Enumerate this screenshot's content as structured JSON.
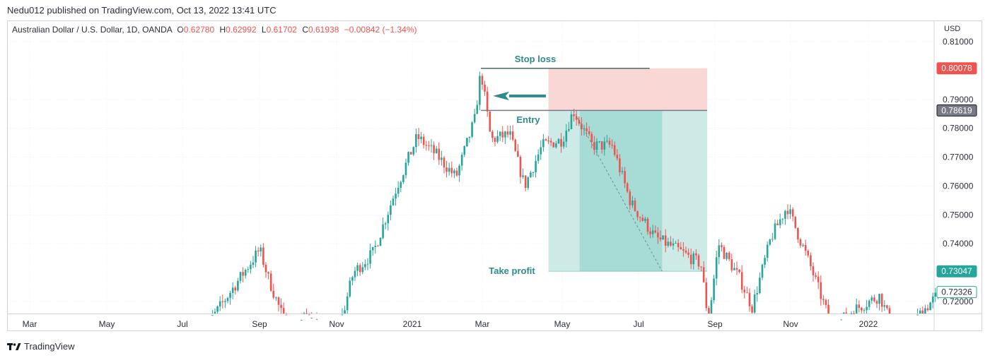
{
  "header": {
    "published": "Nedu012 published on TradingView.com, Oct 13, 2022 13:41 UTC"
  },
  "legend": {
    "symbol": "Australian Dollar / U.S. Dollar, 1D, OANDA",
    "o_label": "O",
    "o_value": "0.62780",
    "h_label": "H",
    "h_value": "0.62992",
    "l_label": "L",
    "l_value": "0.61702",
    "c_label": "C",
    "c_value": "0.61938",
    "change": "−0.00842 (−1.34%)"
  },
  "currency": "USD",
  "footer": {
    "brand": "TradingView"
  },
  "colors": {
    "up": "#26a69a",
    "down": "#ef5350",
    "stop_zone": "#f8d7d5",
    "profit_zone": "#cdeae7",
    "profit_zone_dark": "#a7dbd5",
    "label_teal": "#2e8b8b",
    "entry_badge": "#787b86",
    "stop_badge": "#ef5350",
    "tp_badge": "#26a69a",
    "last_badge_border": "#26a69a"
  },
  "chart_data": {
    "type": "candlestick",
    "symbol": "AUD/USD",
    "x_ticks": [
      "Mar",
      "May",
      "Jul",
      "Sep",
      "Nov",
      "2021",
      "Mar",
      "May",
      "Jul",
      "Sep",
      "Nov",
      "2022"
    ],
    "y_ticks": [
      "0.81000",
      "0.79000",
      "0.78000",
      "0.77000",
      "0.76000",
      "0.75000",
      "0.74000",
      "0.72000"
    ],
    "ylim": [
      0.7155,
      0.8155
    ],
    "time_range": [
      "2020-02",
      "2022-03"
    ],
    "price_path": [
      {
        "t": "2020-07-15",
        "p": 0.708
      },
      {
        "t": "2020-09-01",
        "p": 0.738
      },
      {
        "t": "2020-09-08",
        "p": 0.728
      },
      {
        "t": "2020-09-25",
        "p": 0.708
      },
      {
        "t": "2020-10-10",
        "p": 0.716
      },
      {
        "t": "2020-10-30",
        "p": 0.703
      },
      {
        "t": "2020-11-15",
        "p": 0.73
      },
      {
        "t": "2020-12-01",
        "p": 0.737
      },
      {
        "t": "2020-12-20",
        "p": 0.76
      },
      {
        "t": "2021-01-05",
        "p": 0.777
      },
      {
        "t": "2021-01-20",
        "p": 0.771
      },
      {
        "t": "2021-02-05",
        "p": 0.763
      },
      {
        "t": "2021-02-20",
        "p": 0.783
      },
      {
        "t": "2021-02-25",
        "p": 0.8
      },
      {
        "t": "2021-03-05",
        "p": 0.776
      },
      {
        "t": "2021-03-20",
        "p": 0.778
      },
      {
        "t": "2021-04-01",
        "p": 0.76
      },
      {
        "t": "2021-04-15",
        "p": 0.774
      },
      {
        "t": "2021-05-01",
        "p": 0.776
      },
      {
        "t": "2021-05-10",
        "p": 0.786
      },
      {
        "t": "2021-05-25",
        "p": 0.774
      },
      {
        "t": "2021-06-10",
        "p": 0.774
      },
      {
        "t": "2021-06-25",
        "p": 0.754
      },
      {
        "t": "2021-07-15",
        "p": 0.742
      },
      {
        "t": "2021-08-01",
        "p": 0.738
      },
      {
        "t": "2021-08-20",
        "p": 0.733
      },
      {
        "t": "2021-08-26",
        "p": 0.713
      },
      {
        "t": "2021-09-03",
        "p": 0.74
      },
      {
        "t": "2021-09-20",
        "p": 0.728
      },
      {
        "t": "2021-09-30",
        "p": 0.718
      },
      {
        "t": "2021-10-15",
        "p": 0.742
      },
      {
        "t": "2021-10-28",
        "p": 0.753
      },
      {
        "t": "2021-11-15",
        "p": 0.733
      },
      {
        "t": "2021-12-03",
        "p": 0.711
      },
      {
        "t": "2021-12-20",
        "p": 0.717
      },
      {
        "t": "2022-01-10",
        "p": 0.722
      },
      {
        "t": "2022-01-28",
        "p": 0.703
      },
      {
        "t": "2022-02-10",
        "p": 0.715
      },
      {
        "t": "2022-03-01",
        "p": 0.724
      }
    ],
    "position": {
      "type": "long",
      "label_stop": "Stop loss",
      "label_entry": "Entry",
      "label_take_profit": "Take profit",
      "stop": "0.80078",
      "entry": "0.78619",
      "take_profit": "0.73047",
      "last_price": "0.72326",
      "start": "2021-04-20",
      "end": "2021-08-25",
      "stop_line_start": "2021-02-25",
      "entry_line_start": "2021-02-25",
      "fill_until": "2021-07-20",
      "price_stop": 0.80078,
      "price_entry": 0.78619,
      "price_tp": 0.73047,
      "price_last": 0.72326
    }
  }
}
